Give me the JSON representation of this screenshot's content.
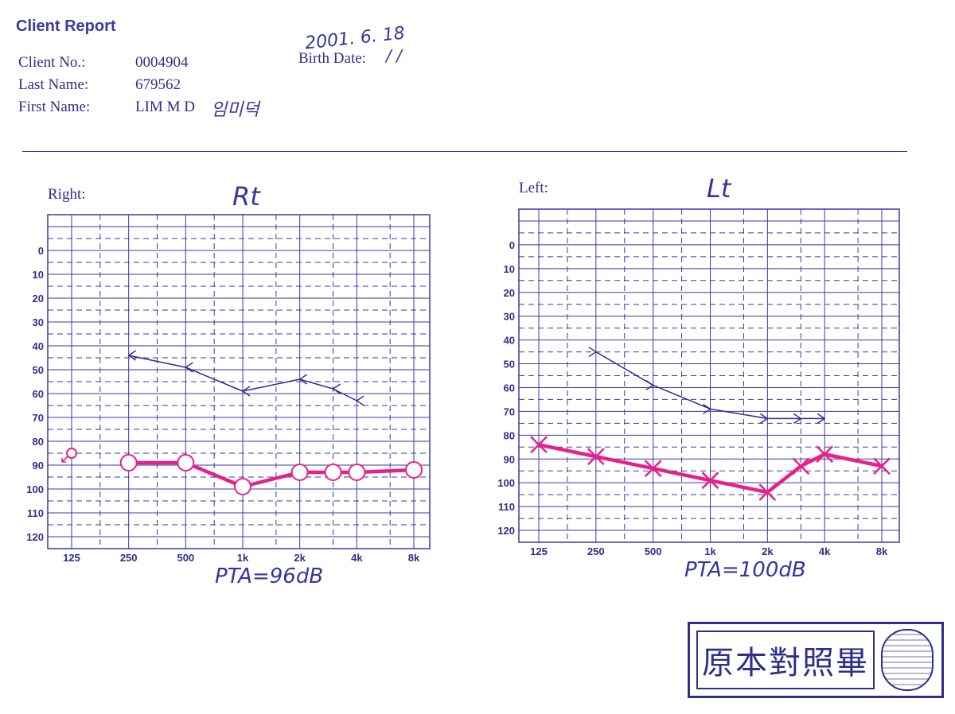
{
  "header": {
    "title": "Client Report",
    "client_no_label": "Client No.:",
    "client_no": "0004904",
    "last_name_label": "Last Name:",
    "last_name": "679562",
    "first_name_label": "First Name:",
    "first_name": "LIM M D",
    "first_name_handwritten": "임미덕",
    "birth_date_label": "Birth Date:",
    "birth_date_handwritten": "2001. 6. 18",
    "birth_date_mark": "/ /"
  },
  "right_ear": {
    "label": "Right:",
    "handwritten_label": "Rt",
    "pta_note": "PTA=96dB"
  },
  "left_ear": {
    "label": "Left:",
    "handwritten_label": "Lt",
    "pta_note": "PTA=100dB"
  },
  "stamp": {
    "text": "原本對照畢"
  },
  "colors": {
    "ink": "#2e2e8c",
    "grid": "#3a3aa6",
    "marker": "#e8208a",
    "paper": "#ffffff"
  },
  "chart_data": [
    {
      "type": "line",
      "panel": "right",
      "x_scale": "log",
      "y_inverted": true,
      "categories": [
        "125",
        "250",
        "500",
        "1k",
        "2k",
        "4k",
        "8k"
      ],
      "y_ticks": [
        0,
        10,
        20,
        30,
        40,
        50,
        60,
        70,
        80,
        90,
        100,
        110,
        120
      ],
      "ylim": [
        -15,
        125
      ],
      "grid": true,
      "series": [
        {
          "role": "bone",
          "symbol": "<",
          "color": "#2e2e8c",
          "points": [
            [
              250,
              44
            ],
            [
              500,
              49
            ],
            [
              1000,
              59
            ],
            [
              2000,
              54
            ],
            [
              3000,
              58
            ],
            [
              4000,
              63
            ]
          ]
        },
        {
          "role": "air",
          "symbol": "O",
          "color": "#e8208a",
          "points": [
            [
              250,
              89
            ],
            [
              500,
              89
            ],
            [
              1000,
              99
            ],
            [
              2000,
              93
            ],
            [
              3000,
              93
            ],
            [
              4000,
              93
            ],
            [
              8000,
              92
            ]
          ]
        },
        {
          "role": "note",
          "symbol": "O-arrow",
          "color": "#e8208a",
          "points": [
            [
              125,
              85
            ]
          ]
        }
      ]
    },
    {
      "type": "line",
      "panel": "left",
      "x_scale": "log",
      "y_inverted": true,
      "categories": [
        "125",
        "250",
        "500",
        "1k",
        "2k",
        "4k",
        "8k"
      ],
      "y_ticks": [
        0,
        10,
        20,
        30,
        40,
        50,
        60,
        70,
        80,
        90,
        100,
        110,
        120
      ],
      "ylim": [
        -15,
        125
      ],
      "grid": true,
      "series": [
        {
          "role": "bone",
          "symbol": ">",
          "color": "#2e2e8c",
          "points": [
            [
              250,
              45
            ],
            [
              500,
              59
            ],
            [
              1000,
              69
            ],
            [
              2000,
              73
            ],
            [
              3000,
              73
            ],
            [
              4000,
              73
            ]
          ]
        },
        {
          "role": "air",
          "symbol": "X",
          "color": "#e8208a",
          "points": [
            [
              125,
              84
            ],
            [
              250,
              89
            ],
            [
              500,
              94
            ],
            [
              1000,
              99
            ],
            [
              2000,
              104
            ],
            [
              3000,
              93
            ],
            [
              4000,
              88
            ],
            [
              8000,
              93
            ]
          ]
        }
      ]
    }
  ]
}
